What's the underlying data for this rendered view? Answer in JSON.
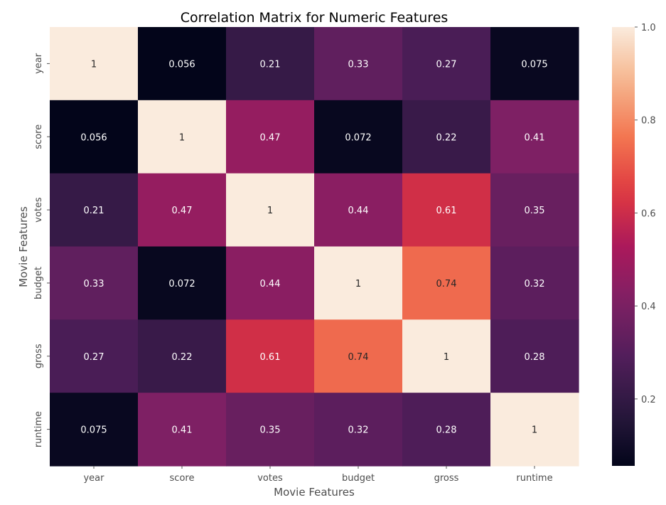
{
  "chart_data": {
    "type": "heatmap",
    "title": "Correlation Matrix for Numeric Features",
    "xlabel": "Movie Features",
    "ylabel": "Movie Features",
    "x_categories": [
      "year",
      "score",
      "votes",
      "budget",
      "gross",
      "runtime"
    ],
    "y_categories": [
      "year",
      "score",
      "votes",
      "budget",
      "gross",
      "runtime"
    ],
    "values": [
      [
        1,
        0.056,
        0.21,
        0.33,
        0.27,
        0.075
      ],
      [
        0.056,
        1,
        0.47,
        0.072,
        0.22,
        0.41
      ],
      [
        0.21,
        0.47,
        1,
        0.44,
        0.61,
        0.35
      ],
      [
        0.33,
        0.072,
        0.44,
        1,
        0.74,
        0.32
      ],
      [
        0.27,
        0.22,
        0.61,
        0.74,
        1,
        0.28
      ],
      [
        0.075,
        0.41,
        0.35,
        0.32,
        0.28,
        1
      ]
    ],
    "annotations": [
      [
        "1",
        "0.056",
        "0.21",
        "0.33",
        "0.27",
        "0.075"
      ],
      [
        "0.056",
        "1",
        "0.47",
        "0.072",
        "0.22",
        "0.41"
      ],
      [
        "0.21",
        "0.47",
        "1",
        "0.44",
        "0.61",
        "0.35"
      ],
      [
        "0.33",
        "0.072",
        "0.44",
        "1",
        "0.74",
        "0.32"
      ],
      [
        "0.27",
        "0.22",
        "0.61",
        "0.74",
        "1",
        "0.28"
      ],
      [
        "0.075",
        "0.41",
        "0.35",
        "0.32",
        "0.28",
        "1"
      ]
    ],
    "colormap": "rocket",
    "vmin": 0.056,
    "vmax": 1.0,
    "colorbar": {
      "ticks": [
        0.2,
        0.4,
        0.6,
        0.8,
        1.0
      ],
      "tick_labels": [
        "0.2",
        "0.4",
        "0.6",
        "0.8",
        "1.0"
      ]
    }
  }
}
